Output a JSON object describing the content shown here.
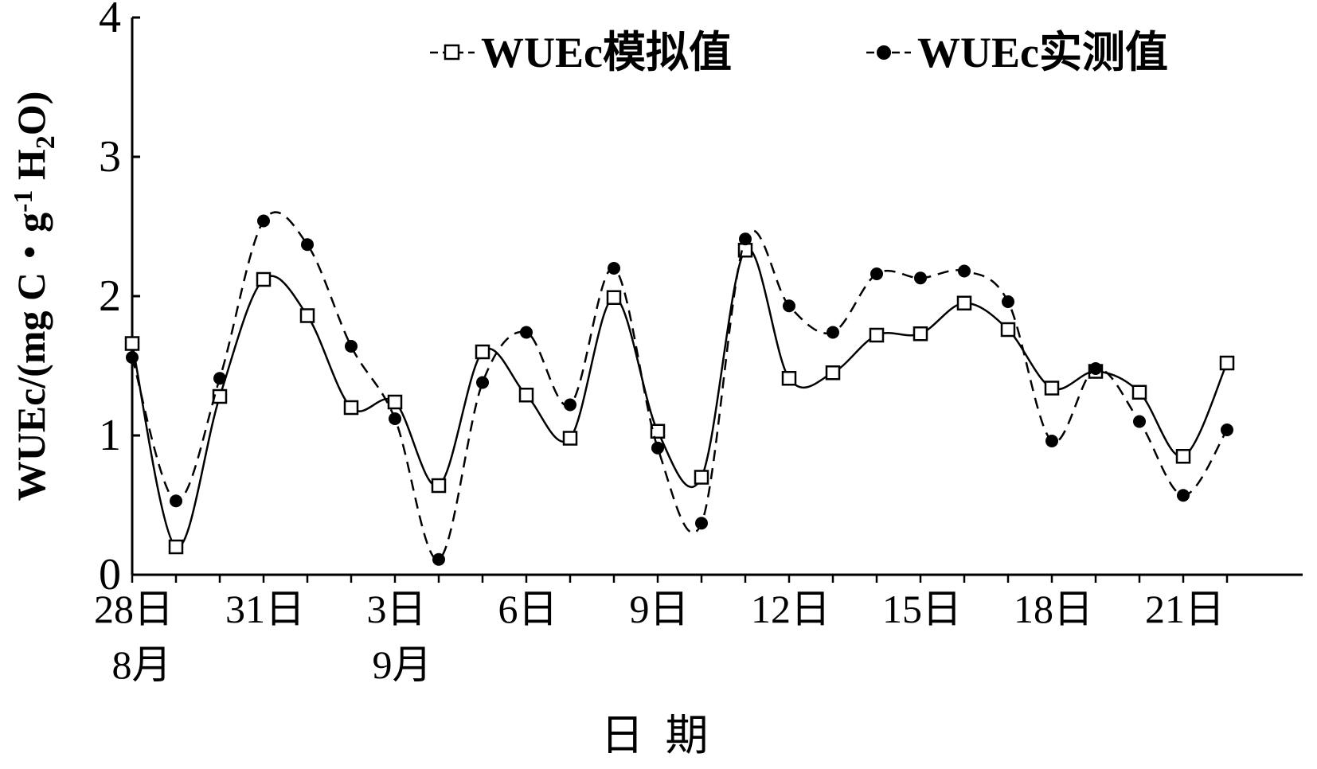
{
  "chart_data": {
    "type": "line",
    "xlabel": "日  期",
    "ylabel": "WUEc/(mg C・g",
    "ylabel_sup": "-1",
    "ylabel_tail_1": " H",
    "ylabel_sub": "2",
    "ylabel_tail_2": "O)",
    "ylim": [
      0,
      4
    ],
    "y_ticks": [
      "0",
      "1",
      "2",
      "3",
      "4"
    ],
    "x_tick_labels": [
      "28日",
      "31日",
      "3日",
      "6日",
      "9日",
      "12日",
      "15日",
      "18日",
      "21日"
    ],
    "month_labels": [
      "8月",
      "9月"
    ],
    "x": [
      "8-28",
      "8-29",
      "8-30",
      "8-31",
      "9-1",
      "9-2",
      "9-3",
      "9-4",
      "9-5",
      "9-6",
      "9-7",
      "9-8",
      "9-9",
      "9-10",
      "9-11",
      "9-12",
      "9-13",
      "9-14",
      "9-15",
      "9-16",
      "9-17",
      "9-18",
      "9-19",
      "9-20",
      "9-21",
      "9-22"
    ],
    "series": [
      {
        "name": "WUEc模拟值",
        "marker": "open-square",
        "line": "solid",
        "values": [
          1.66,
          0.2,
          1.28,
          2.12,
          1.86,
          1.2,
          1.24,
          0.64,
          1.6,
          1.29,
          0.98,
          1.99,
          1.03,
          0.7,
          2.33,
          1.41,
          1.45,
          1.72,
          1.73,
          1.95,
          1.76,
          1.34,
          1.46,
          1.31,
          0.85,
          1.52
        ]
      },
      {
        "name": "WUEc实测值",
        "marker": "filled-circle",
        "line": "dashed",
        "values": [
          1.56,
          0.53,
          1.41,
          2.54,
          2.37,
          1.64,
          1.12,
          0.11,
          1.38,
          1.74,
          1.22,
          2.2,
          0.91,
          0.37,
          2.41,
          1.93,
          1.74,
          2.16,
          2.13,
          2.18,
          1.96,
          0.96,
          1.48,
          1.1,
          0.57,
          1.04
        ]
      }
    ],
    "legend_position": "top-center",
    "grid": false
  }
}
